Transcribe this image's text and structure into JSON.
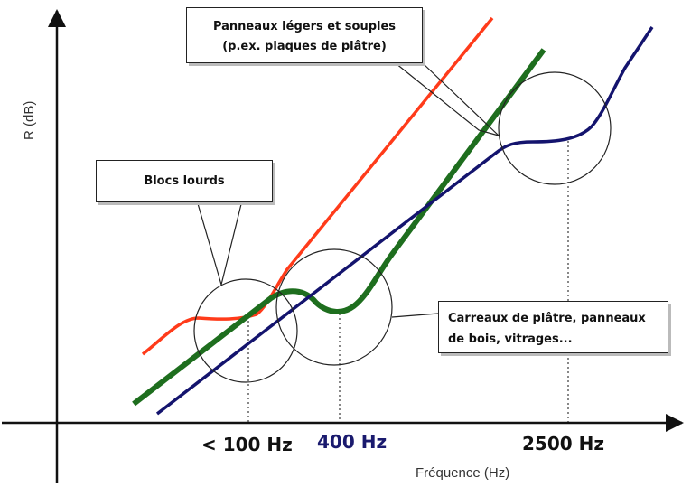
{
  "diagram": {
    "callouts": {
      "light_panels": [
        "Panneaux légers et souples",
        "(p.ex. plaques de plâtre)"
      ],
      "heavy_blocks": "Blocs lourds",
      "tiles": [
        "Carreaux de plâtre, panneaux",
        "de bois, vitrages..."
      ]
    },
    "frequency_markers": {
      "low": "< 100 Hz",
      "mid": "400 Hz",
      "high": "2500 Hz"
    },
    "xlabel": "Fréquence (Hz)",
    "ylabel": "R (dB)",
    "colors": {
      "heavy_blocks_curve": "#ff3b1a",
      "tiles_curve": "#1e6e1e",
      "light_panels_curve": "#14146e",
      "axes": "#111111"
    }
  }
}
